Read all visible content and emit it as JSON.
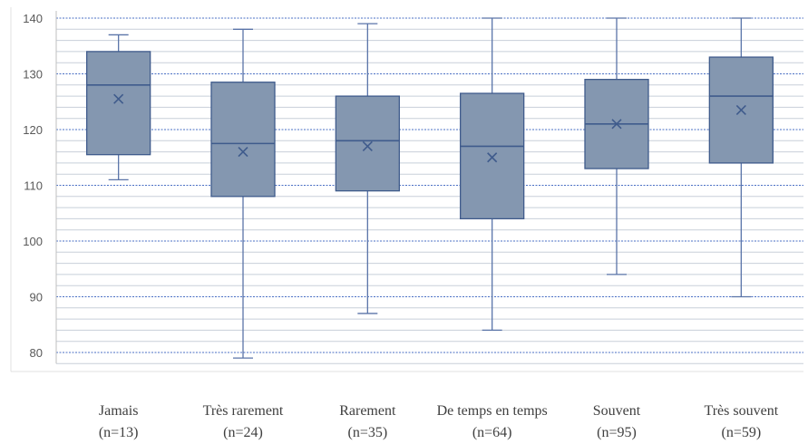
{
  "chart_data": {
    "type": "boxplot",
    "title": "",
    "xlabel": "",
    "ylabel": "",
    "ylim": [
      78,
      140
    ],
    "yticks": [
      80,
      90,
      100,
      110,
      120,
      130,
      140
    ],
    "minor_step": 2,
    "grid": true,
    "colors": {
      "box_fill": "#8497B0",
      "box_stroke": "#3F5B8C",
      "whisker": "#5A74A8",
      "major_grid": "#4A6FC4",
      "minor_grid": "#C8CFD9",
      "axis": "#BFBFBF"
    },
    "categories": [
      {
        "label": "Jamais",
        "n": "(n=13)",
        "min": 111,
        "q1": 115.5,
        "median": 128,
        "q3": 134,
        "max": 137,
        "mean": 125.5
      },
      {
        "label": "Très rarement",
        "n": "(n=24)",
        "min": 79,
        "q1": 108,
        "median": 117.5,
        "q3": 128.5,
        "max": 138,
        "mean": 116
      },
      {
        "label": "Rarement",
        "n": "(n=35)",
        "min": 87,
        "q1": 109,
        "median": 118,
        "q3": 126,
        "max": 139,
        "mean": 117
      },
      {
        "label": "De temps en temps",
        "n": "(n=64)",
        "min": 84,
        "q1": 104,
        "median": 117,
        "q3": 126.5,
        "max": 140,
        "mean": 115
      },
      {
        "label": "Souvent",
        "n": "(n=95)",
        "min": 94,
        "q1": 113,
        "median": 121,
        "q3": 129,
        "max": 140,
        "mean": 121
      },
      {
        "label": "Très souvent",
        "n": "(n=59)",
        "min": 90,
        "q1": 114,
        "median": 126,
        "q3": 133,
        "max": 140,
        "mean": 123.5
      }
    ]
  }
}
